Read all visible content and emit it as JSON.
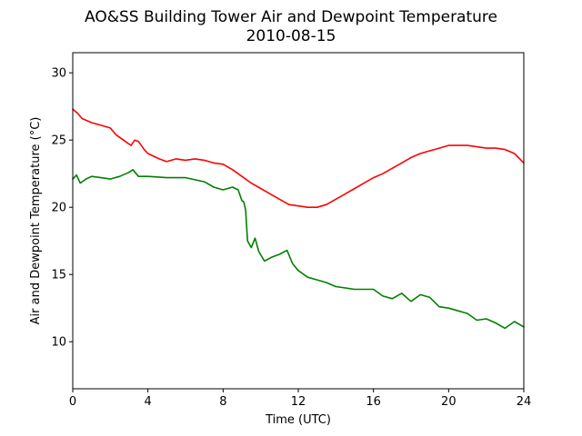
{
  "chart_data": {
    "type": "line",
    "title": "AO&SS Building Tower Air and Dewpoint Temperature",
    "subtitle": "2010-08-15",
    "xlabel": "Time (UTC)",
    "ylabel": "Air and Dewpoint Temperature (°C)",
    "xlim": [
      0,
      24
    ],
    "ylim": [
      6.5,
      31.5
    ],
    "xticks": [
      0,
      4,
      8,
      12,
      16,
      20,
      24
    ],
    "yticks": [
      10,
      15,
      20,
      25,
      30
    ],
    "grid": false,
    "series": [
      {
        "color": "#ff0000",
        "x": [
          0,
          0.25,
          0.5,
          1,
          1.5,
          2,
          2.3,
          2.6,
          2.9,
          3.1,
          3.3,
          3.5,
          3.8,
          4,
          4.3,
          4.6,
          5,
          5.5,
          6,
          6.5,
          7,
          7.5,
          8,
          8.5,
          9,
          9.5,
          10,
          10.5,
          11,
          11.5,
          12,
          12.5,
          13,
          13.5,
          14,
          14.5,
          15,
          15.5,
          16,
          16.5,
          17,
          17.5,
          18,
          18.5,
          19,
          19.5,
          20,
          20.5,
          21,
          21.5,
          22,
          22.5,
          23,
          23.5,
          24
        ],
        "y": [
          27.3,
          27.0,
          26.6,
          26.3,
          26.1,
          25.9,
          25.4,
          25.1,
          24.8,
          24.6,
          25.0,
          24.9,
          24.3,
          24.0,
          23.8,
          23.6,
          23.4,
          23.6,
          23.5,
          23.6,
          23.5,
          23.3,
          23.2,
          22.8,
          22.3,
          21.8,
          21.4,
          21.0,
          20.6,
          20.2,
          20.1,
          20.0,
          20.0,
          20.2,
          20.6,
          21.0,
          21.4,
          21.8,
          22.2,
          22.5,
          22.9,
          23.3,
          23.7,
          24.0,
          24.2,
          24.4,
          24.6,
          24.6,
          24.6,
          24.5,
          24.4,
          24.4,
          24.3,
          24.0,
          23.3
        ]
      },
      {
        "color": "#008000",
        "x": [
          0,
          0.2,
          0.4,
          0.7,
          1,
          1.5,
          2,
          2.5,
          3,
          3.2,
          3.5,
          4,
          5,
          6,
          7,
          7.5,
          8,
          8.5,
          8.8,
          9,
          9.1,
          9.2,
          9.3,
          9.5,
          9.7,
          9.9,
          10.2,
          10.6,
          11,
          11.4,
          11.7,
          12,
          12.5,
          13,
          13.5,
          14,
          15,
          16,
          16.5,
          17,
          17.5,
          18,
          18.5,
          19,
          19.5,
          20,
          20.5,
          21,
          21.5,
          22,
          22.5,
          23,
          23.5,
          24
        ],
        "y": [
          22.1,
          22.4,
          21.8,
          22.1,
          22.3,
          22.2,
          22.1,
          22.3,
          22.6,
          22.8,
          22.3,
          22.3,
          22.2,
          22.2,
          21.9,
          21.5,
          21.3,
          21.5,
          21.3,
          20.5,
          20.4,
          19.8,
          17.5,
          17.0,
          17.7,
          16.7,
          16.0,
          16.3,
          16.5,
          16.8,
          15.8,
          15.3,
          14.8,
          14.6,
          14.4,
          14.1,
          13.9,
          13.9,
          13.4,
          13.2,
          13.6,
          13.0,
          13.5,
          13.3,
          12.6,
          12.5,
          12.3,
          12.1,
          11.6,
          11.7,
          11.4,
          11.0,
          11.5,
          11.1
        ]
      }
    ]
  }
}
